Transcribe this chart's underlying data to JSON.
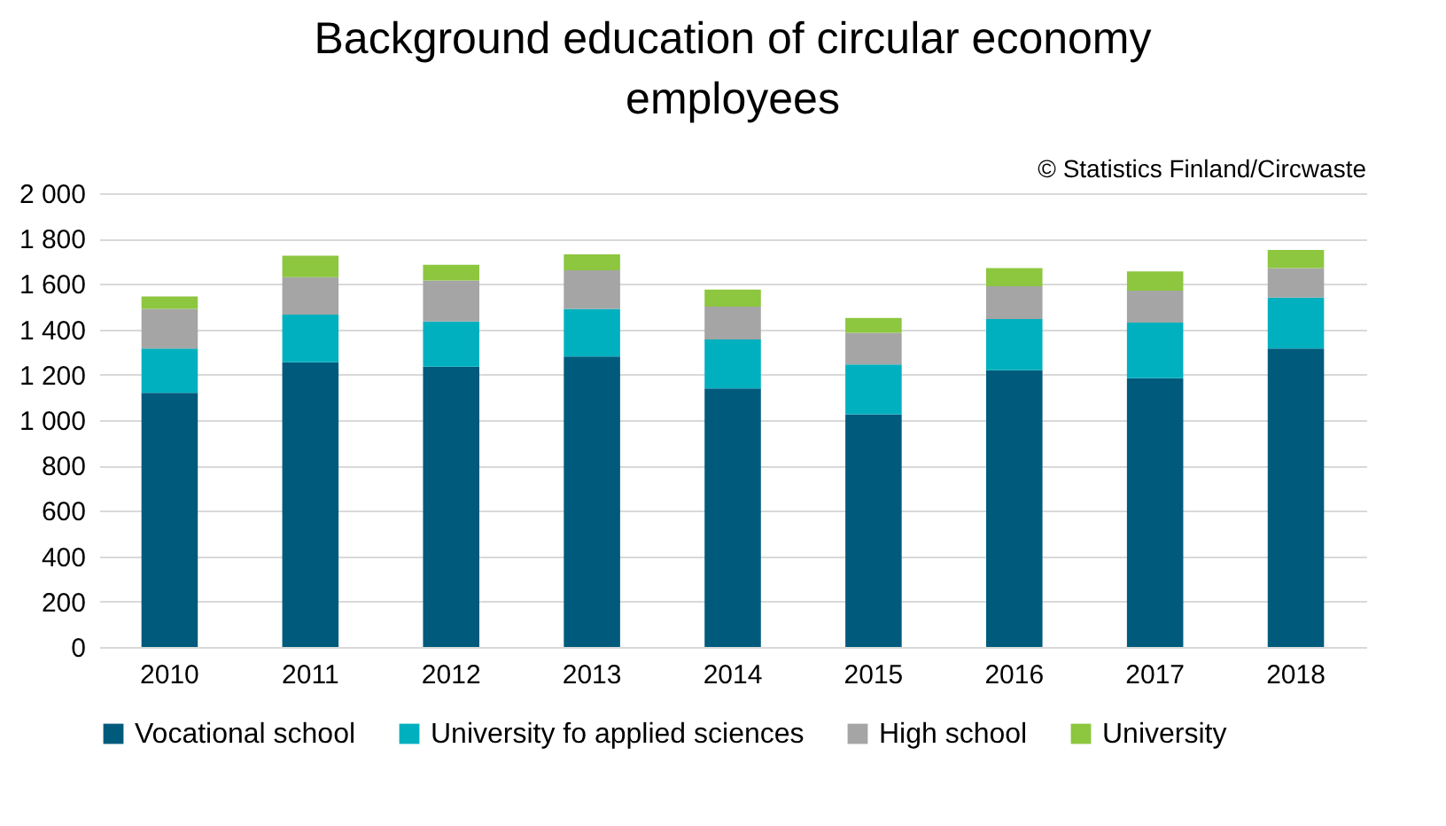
{
  "chart_data": {
    "type": "bar",
    "title": "Background education of circular economy employees",
    "annotations": [
      "© Statistics Finland/Circwaste"
    ],
    "categories": [
      "2010",
      "2011",
      "2012",
      "2013",
      "2014",
      "2015",
      "2016",
      "2017",
      "2018"
    ],
    "stacked": true,
    "series": [
      {
        "name": "Vocational school",
        "color": "#005a7c",
        "values": [
          1120,
          1255,
          1235,
          1280,
          1140,
          1025,
          1220,
          1185,
          1315
        ]
      },
      {
        "name": "University fo applied sciences",
        "color": "#00b0bf",
        "values": [
          195,
          210,
          200,
          210,
          215,
          220,
          225,
          245,
          225
        ]
      },
      {
        "name": "High school",
        "color": "#a5a5a5",
        "values": [
          175,
          165,
          180,
          170,
          145,
          140,
          145,
          140,
          130
        ]
      },
      {
        "name": "University",
        "color": "#8dc63f",
        "values": [
          55,
          95,
          70,
          70,
          75,
          65,
          80,
          85,
          80
        ]
      }
    ],
    "ylim": [
      0,
      2000
    ],
    "yticks": [
      {
        "value": 0,
        "label": "0"
      },
      {
        "value": 200,
        "label": "200"
      },
      {
        "value": 400,
        "label": "400"
      },
      {
        "value": 600,
        "label": "600"
      },
      {
        "value": 800,
        "label": "800"
      },
      {
        "value": 1000,
        "label": "1 000"
      },
      {
        "value": 1200,
        "label": "1 200"
      },
      {
        "value": 1400,
        "label": "1 400"
      },
      {
        "value": 1600,
        "label": "1 600"
      },
      {
        "value": 1800,
        "label": "1 800"
      },
      {
        "value": 2000,
        "label": "2 000"
      }
    ],
    "grid": "y",
    "legend": "bottom"
  }
}
